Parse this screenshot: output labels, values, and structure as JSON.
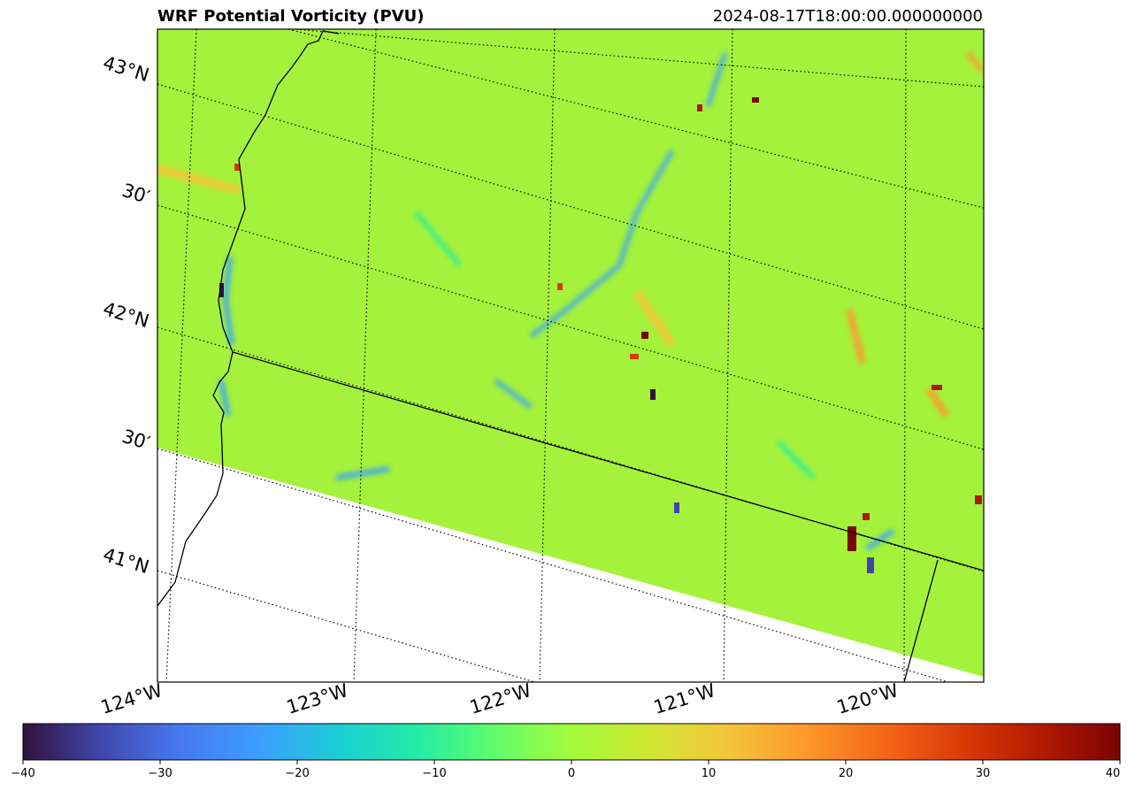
{
  "header": {
    "title": "WRF Potential Vorticity (PVU)",
    "timestamp": "2024-08-17T18:00:00.000000000"
  },
  "map": {
    "latitude_labels": [
      "43°N",
      "30′",
      "42°N",
      "30′",
      "41°N"
    ],
    "longitude_labels": [
      "124°W",
      "123°W",
      "122°W",
      "121°W",
      "120°W"
    ],
    "colors": {
      "background_field": "#a4f23b",
      "no_data": "#ffffff",
      "coastline": "#000000",
      "gridline": "#000000"
    },
    "gridlines": "dotted"
  },
  "colorbar": {
    "cmap": "turbo",
    "range": [
      -40,
      40
    ],
    "tick_labels": [
      "−40",
      "−30",
      "−20",
      "−10",
      "0",
      "10",
      "20",
      "30",
      "40"
    ],
    "tick_values": [
      -40,
      -30,
      -20,
      -10,
      0,
      10,
      20,
      30,
      40
    ]
  }
}
